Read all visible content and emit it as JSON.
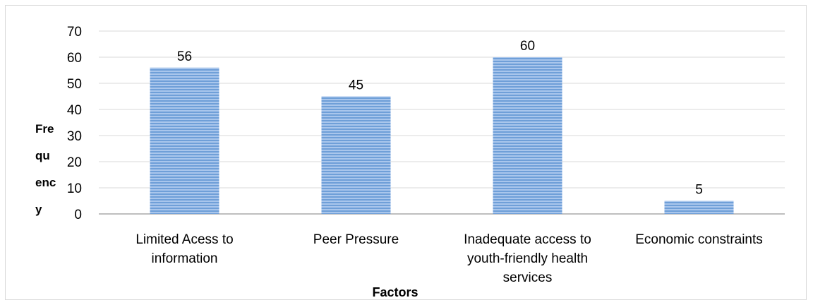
{
  "chart_data": {
    "type": "bar",
    "categories": [
      [
        "Limited Acess to",
        "information"
      ],
      [
        "Peer Pressure"
      ],
      [
        "Inadequate access to",
        "youth-friendly health",
        "services"
      ],
      [
        "Economic constraints"
      ]
    ],
    "values": [
      56,
      45,
      60,
      5
    ],
    "xlabel": "Factors",
    "ylabel_lines": [
      "Fre",
      "qu",
      "enc",
      "y"
    ],
    "ylim": [
      0,
      70
    ],
    "yticks": [
      0,
      10,
      20,
      30,
      40,
      50,
      60,
      70
    ],
    "grid": true,
    "bar_color": "#8fb4e3",
    "bar_stripe_color": "#5b8fd0",
    "data_labels": true
  }
}
